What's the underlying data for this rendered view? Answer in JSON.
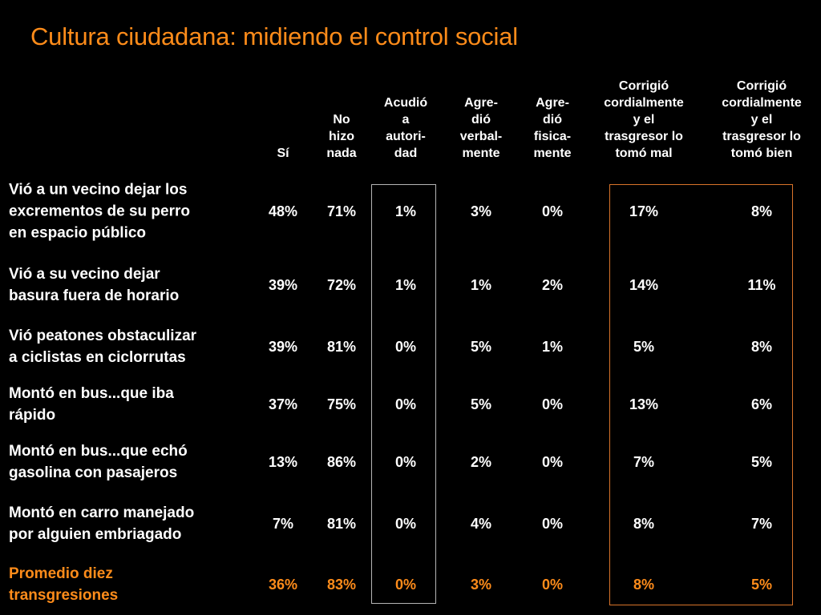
{
  "title": "Cultura ciudadana: midiendo el control social",
  "colors": {
    "background": "#000000",
    "text": "#ffffff",
    "accent": "#ff8c1a",
    "gray_box": "#b5b5b5",
    "orange_box": "#d9742a"
  },
  "columns": [
    [
      "Sí"
    ],
    [
      "No",
      "hizo",
      "nada"
    ],
    [
      "Acudió",
      "a",
      "autori-",
      "dad"
    ],
    [
      "Agre-",
      "dió",
      "verbal-",
      "mente"
    ],
    [
      "Agre-",
      "dió",
      "fisica-",
      "mente"
    ],
    [
      "Corrigió",
      "cordialmente",
      "y el",
      "trasgresor lo",
      "tomó mal"
    ],
    [
      "Corrigió",
      "cordialmente",
      "y el",
      "trasgresor lo",
      "tomó bien"
    ]
  ],
  "rows": [
    {
      "label": [
        "Vió a un vecino dejar los",
        "excrementos de su perro",
        "en espacio público"
      ],
      "values": [
        "48%",
        "71%",
        "1%",
        "3%",
        "0%",
        "17%",
        "8%"
      ]
    },
    {
      "label": [
        "Vió a su vecino dejar",
        "basura fuera de horario"
      ],
      "values": [
        "39%",
        "72%",
        "1%",
        "1%",
        "2%",
        "14%",
        "11%"
      ]
    },
    {
      "label": [
        "Vió peatones obstaculizar",
        "a ciclistas en ciclorrutas"
      ],
      "values": [
        "39%",
        "81%",
        "0%",
        "5%",
        "1%",
        "5%",
        "8%"
      ]
    },
    {
      "label": [
        "Montó en bus...que iba",
        "rápido"
      ],
      "values": [
        "37%",
        "75%",
        "0%",
        "5%",
        "0%",
        "13%",
        "6%"
      ]
    },
    {
      "label": [
        "Montó en bus...que echó",
        "gasolina con pasajeros"
      ],
      "values": [
        "13%",
        "86%",
        "0%",
        "2%",
        "0%",
        "7%",
        "5%"
      ]
    },
    {
      "label": [
        "Montó en carro manejado",
        "por alguien embriagado"
      ],
      "values": [
        "7%",
        "81%",
        "0%",
        "4%",
        "0%",
        "8%",
        "7%"
      ]
    },
    {
      "label": [
        "Promedio diez",
        "transgresiones"
      ],
      "values": [
        "36%",
        "83%",
        "0%",
        "3%",
        "0%",
        "8%",
        "5%"
      ],
      "highlight": true
    }
  ]
}
